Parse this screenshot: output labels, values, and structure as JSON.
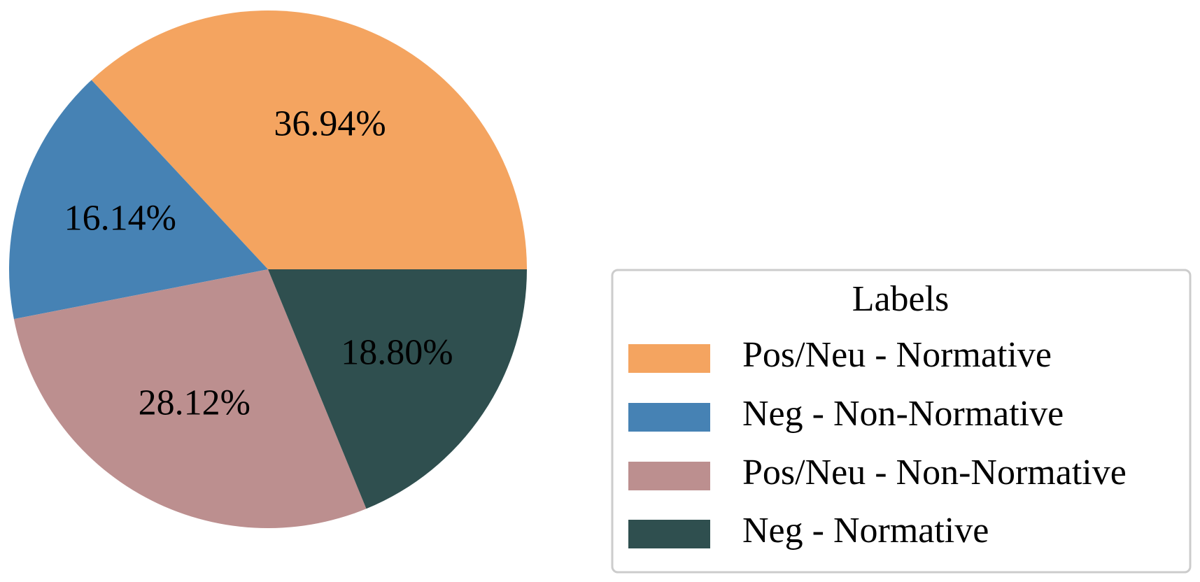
{
  "chart_data": {
    "type": "pie",
    "categories": [
      "Pos/Neu - Normative",
      "Neg - Non-Normative",
      "Pos/Neu - Non-Normative",
      "Neg - Normative"
    ],
    "values": [
      36.94,
      16.14,
      28.12,
      18.8
    ],
    "value_labels": [
      "36.94%",
      "16.14%",
      "28.12%",
      "18.80%"
    ],
    "colors": [
      "#f4a460",
      "#4682b4",
      "#bc8f8f",
      "#2f4f4f"
    ],
    "legend_title": "Labels",
    "legend_position": "lower right"
  }
}
